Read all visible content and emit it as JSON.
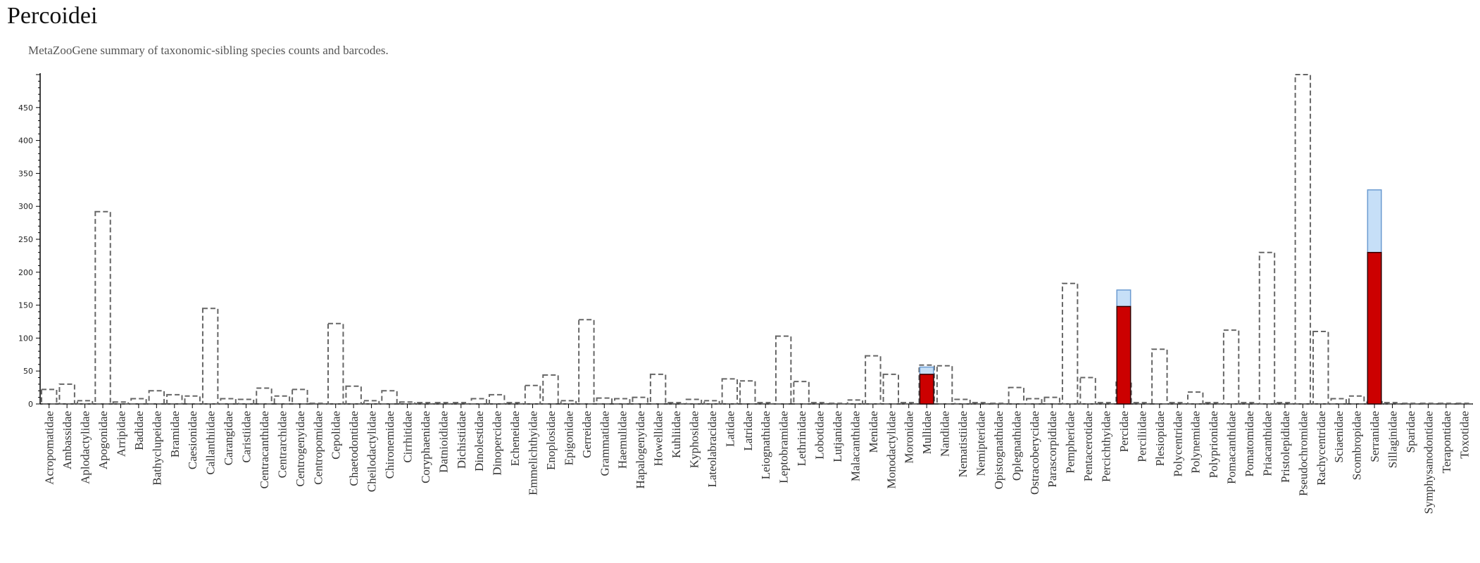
{
  "title": "Percoidei",
  "subtitle": "MetaZooGene summary of taxonomic-sibling species counts and barcodes.",
  "chart_data": {
    "type": "bar",
    "ylim": [
      0,
      500
    ],
    "yticks": [
      0,
      50,
      100,
      150,
      200,
      250,
      300,
      350,
      400,
      450
    ],
    "grid": false,
    "categories": [
      "Acropomatidae",
      "Ambassidae",
      "Aplodactylidae",
      "Apogonidae",
      "Arripidae",
      "Badidae",
      "Bathyclupeidae",
      "Bramidae",
      "Caesionidae",
      "Callanthiidae",
      "Carangidae",
      "Caristiidae",
      "Centracanthidae",
      "Centrarchidae",
      "Centrogenyidae",
      "Centropomidae",
      "Cepolidae",
      "Chaetodontidae",
      "Cheilodactylidae",
      "Chironemidae",
      "Cirrhitidae",
      "Coryphaenidae",
      "Datnioididae",
      "Dichistiidae",
      "Dinolestidae",
      "Dinopercidae",
      "Echeneidae",
      "Emmelichthyidae",
      "Enoplosidae",
      "Epigonidae",
      "Gerreidae",
      "Grammatidae",
      "Haemulidae",
      "Hapalogenyidae",
      "Howellidae",
      "Kuhliidae",
      "Kyphosidae",
      "Lateolabracidae",
      "Latidae",
      "Latridae",
      "Leiognathidae",
      "Leptobramidae",
      "Lethrinidae",
      "Lobotidae",
      "Lutjanidae",
      "Malacanthidae",
      "Menidae",
      "Monodactylidae",
      "Moronidae",
      "Mullidae",
      "Nandidae",
      "Nematistiidae",
      "Nemipteridae",
      "Opistognathidae",
      "Oplegnathidae",
      "Ostracoberycidae",
      "Parascorpididae",
      "Pempheridae",
      "Pentacerotidae",
      "Percichthyidae",
      "Percidae",
      "Perciliidae",
      "Plesiopidae",
      "Polycentridae",
      "Polynemidae",
      "Polyprionidae",
      "Pomacanthidae",
      "Pomatomidae",
      "Priacanthidae",
      "Pristolepididae",
      "Pseudochromidae",
      "Rachycentridae",
      "Sciaenidae",
      "Scombropidae",
      "Serranidae",
      "Sillaginidae",
      "Sparidae",
      "Symphysanodontidae",
      "Terapontidae",
      "Toxotidae"
    ],
    "series": [
      {
        "style": "dashed-outline",
        "values": [
          22,
          30,
          5,
          292,
          3,
          8,
          20,
          14,
          12,
          145,
          8,
          7,
          24,
          12,
          22,
          1,
          122,
          27,
          5,
          20,
          3,
          2,
          2,
          2,
          8,
          14,
          2,
          28,
          44,
          5,
          128,
          9,
          8,
          10,
          45,
          2,
          7,
          5,
          38,
          35,
          2,
          103,
          34,
          2,
          1,
          6,
          73,
          45,
          2,
          59,
          58,
          7,
          2,
          1,
          25,
          8,
          10,
          183,
          40,
          2,
          33,
          2,
          83,
          2,
          18,
          2,
          112,
          2,
          230,
          2,
          500,
          110,
          8,
          12,
          5,
          2,
          1,
          1,
          1,
          1
        ]
      },
      {
        "style": "light-blue",
        "values": [
          0,
          0,
          0,
          0,
          0,
          0,
          0,
          0,
          0,
          0,
          0,
          0,
          0,
          0,
          0,
          0,
          0,
          0,
          0,
          0,
          0,
          0,
          0,
          0,
          0,
          0,
          0,
          0,
          0,
          0,
          0,
          0,
          0,
          0,
          0,
          0,
          0,
          0,
          0,
          0,
          0,
          0,
          0,
          0,
          0,
          0,
          0,
          0,
          0,
          56,
          0,
          0,
          0,
          0,
          0,
          0,
          0,
          0,
          0,
          0,
          173,
          0,
          0,
          0,
          0,
          0,
          0,
          0,
          0,
          0,
          0,
          0,
          0,
          0,
          325,
          0,
          0,
          0,
          0,
          0
        ]
      },
      {
        "style": "red",
        "values": [
          0,
          0,
          0,
          0,
          0,
          0,
          0,
          0,
          0,
          0,
          0,
          0,
          0,
          0,
          0,
          0,
          0,
          0,
          0,
          0,
          0,
          0,
          0,
          0,
          0,
          0,
          0,
          0,
          0,
          0,
          0,
          0,
          0,
          0,
          0,
          0,
          0,
          0,
          0,
          0,
          0,
          0,
          0,
          0,
          0,
          0,
          0,
          0,
          0,
          45,
          0,
          0,
          0,
          0,
          0,
          0,
          0,
          0,
          0,
          0,
          148,
          0,
          0,
          0,
          0,
          0,
          0,
          0,
          0,
          0,
          0,
          0,
          0,
          0,
          230,
          0,
          0,
          0,
          0,
          0
        ]
      }
    ],
    "colors": {
      "outline": "#666666",
      "light_fill": "#c6dff7",
      "light_stroke": "#6b9bd1",
      "red_fill": "#cc0000",
      "red_stroke": "#330000"
    }
  }
}
